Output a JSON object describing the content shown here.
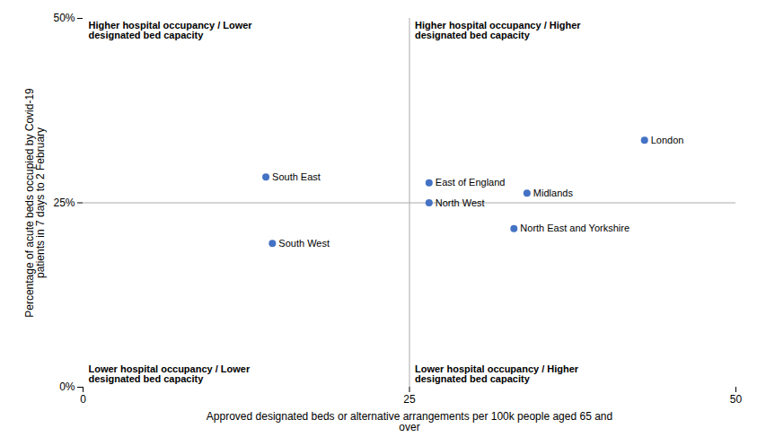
{
  "chart_data": {
    "type": "scatter",
    "xlabel": "Approved designated beds or alternative arrangements per 100k people aged 65 and\nover",
    "ylabel": "Percentage of acute beds occupied by Covid-19\npatients in 7 days to 2 February",
    "points": [
      {
        "name": "South East",
        "x": 14.0,
        "y": 0.285
      },
      {
        "name": "South West",
        "x": 14.5,
        "y": 0.195
      },
      {
        "name": "East of England",
        "x": 26.5,
        "y": 0.277
      },
      {
        "name": "North West",
        "x": 26.5,
        "y": 0.25
      },
      {
        "name": "Midlands",
        "x": 34.0,
        "y": 0.263
      },
      {
        "name": "North East and Yorkshire",
        "x": 33.0,
        "y": 0.215
      },
      {
        "name": "London",
        "x": 43.0,
        "y": 0.335
      }
    ],
    "color": "#4472C4",
    "reference_lines": {
      "x": 25,
      "y": 0.25,
      "color": "#aaaaaa"
    },
    "annotations": [
      "Higher hospital occupancy / Lower\ndesignated bed capacity",
      "Higher hospital occupancy / Higher\ndesignated bed capacity",
      "Lower hospital occupancy / Lower\ndesignated bed capacity",
      "Lower hospital occupancy / Higher\ndesignated bed capacity"
    ],
    "xlim": [
      0,
      50
    ],
    "ylim": [
      0,
      0.5
    ],
    "xticks": [
      0,
      25,
      50
    ],
    "yticks": [
      {
        "value": 0.0,
        "label": "0%"
      },
      {
        "value": 0.25,
        "label": "25%"
      },
      {
        "value": 0.5,
        "label": "50%"
      }
    ],
    "grid": false
  }
}
